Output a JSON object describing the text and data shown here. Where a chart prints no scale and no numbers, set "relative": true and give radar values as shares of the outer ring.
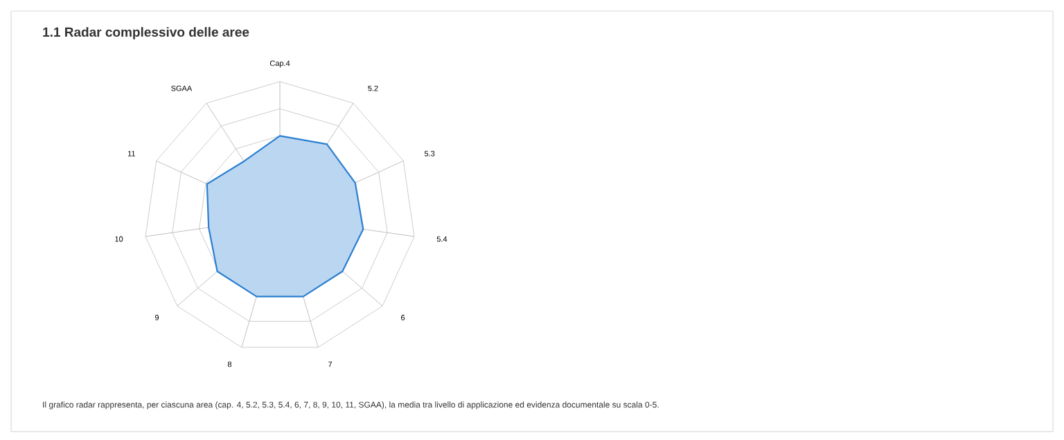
{
  "chart_data": {
    "type": "radar",
    "title": "1.1 Radar complessivo delle aree",
    "categories": [
      "Cap.4",
      "5.2",
      "5.3",
      "5.4",
      "6",
      "7",
      "8",
      "9",
      "10",
      "11",
      "SGAA"
    ],
    "relative": true,
    "series": [
      {
        "color": "#2a7fd0",
        "values": [
          0.6,
          0.64,
          0.61,
          0.62,
          0.61,
          0.61,
          0.61,
          0.61,
          0.53,
          0.59,
          0.49
        ]
      }
    ],
    "annotations": [
      "Il grafico radar rappresenta, per ciascuna area (cap. 4, 5.2, 5.3, 5.4, 6, 7, 8, 9, 10, 11, SGAA), la media tra livello di applicazione ed evidenza documentale su scala 0-5."
    ]
  }
}
